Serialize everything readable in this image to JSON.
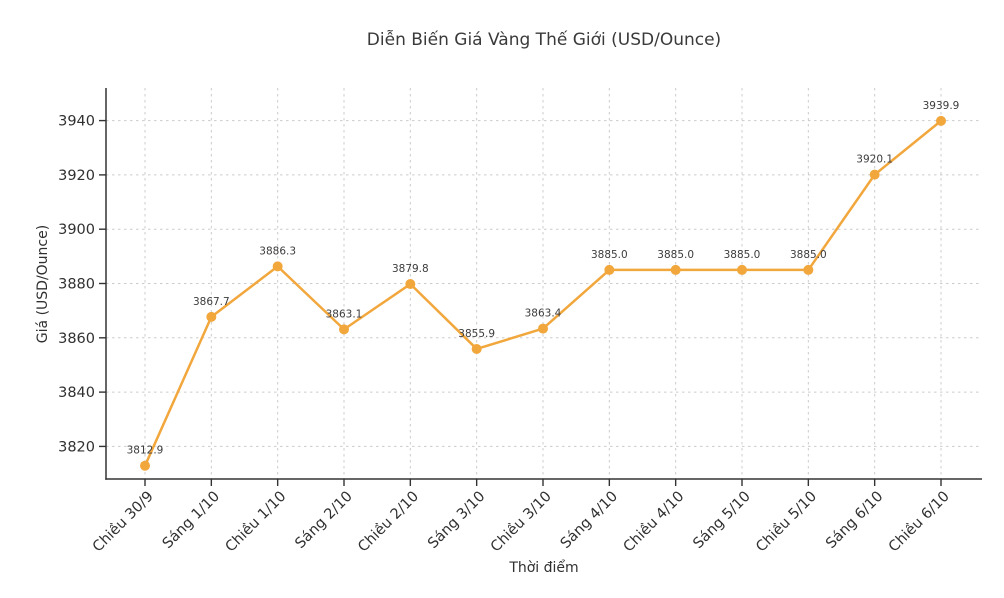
{
  "chart_data": {
    "type": "line",
    "title": "Diễn Biến Giá Vàng Thế Giới (USD/Ounce)",
    "xlabel": "Thời điểm",
    "ylabel": "Giá (USD/Ounce)",
    "categories": [
      "Chiều 30/9",
      "Sáng 1/10",
      "Chiều 1/10",
      "Sáng 2/10",
      "Chiều 2/10",
      "Sáng 3/10",
      "Chiều 3/10",
      "Sáng 4/10",
      "Chiều 4/10",
      "Sáng 5/10",
      "Chiều 5/10",
      "Sáng 6/10",
      "Chiều 6/10"
    ],
    "values": [
      3812.9,
      3867.7,
      3886.3,
      3863.1,
      3879.8,
      3855.9,
      3863.4,
      3885.0,
      3885.0,
      3885.0,
      3885.0,
      3920.1,
      3939.9
    ],
    "data_labels": [
      "3812.9",
      "3867.7",
      "3886.3",
      "3863.1",
      "3879.8",
      "3855.9",
      "3863.4",
      "3885.0",
      "3885.0",
      "3885.0",
      "3885.0",
      "3920.1",
      "3939.9"
    ],
    "yticks": [
      3820,
      3840,
      3860,
      3880,
      3900,
      3920,
      3940
    ],
    "ylim": [
      3808,
      3952
    ],
    "grid": true,
    "grid_style": "dashed",
    "legend": "none",
    "marker": "circle",
    "colors": {
      "line": "#F2A73D",
      "marker": "#F2A73D",
      "grid": "#CCCCCC",
      "axis": "#333333",
      "tick_label": "#303030",
      "title_text": "#3A3A3A",
      "data_label": "#3C3C3C",
      "background": "#FFFFFF"
    }
  }
}
